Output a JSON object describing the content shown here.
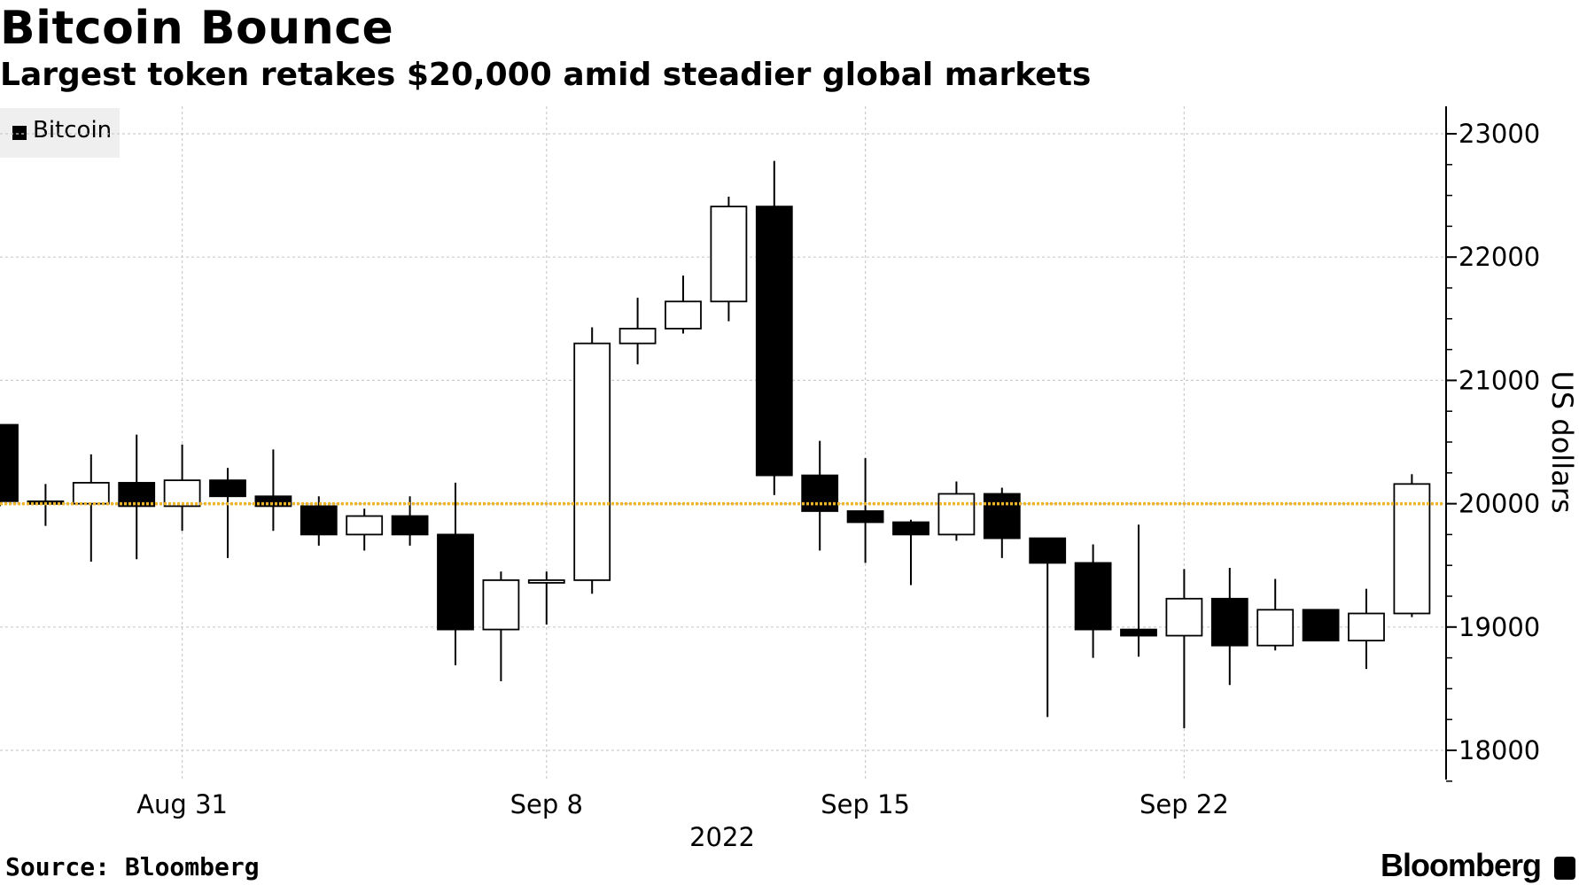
{
  "title": "Bitcoin Bounce",
  "subtitle": "Largest token retakes $20,000 amid steadier global markets",
  "legend": {
    "label": "Bitcoin"
  },
  "source": "Source: Bloomberg",
  "brand": "Bloomberg",
  "colors": {
    "up_fill": "#ffffff",
    "down_fill": "#000000",
    "reference_line": "#f0b429",
    "grid": "#cccccc"
  },
  "chart_data": {
    "type": "candlestick",
    "title": "Bitcoin Bounce",
    "subtitle": "Largest token retakes $20,000 amid steadier global markets",
    "series_name": "Bitcoin",
    "ylabel": "US dollars",
    "xlabel": "2022",
    "ylim": [
      17750,
      23100
    ],
    "yticks": [
      18000,
      19000,
      20000,
      21000,
      22000,
      23000
    ],
    "ytick_labels": [
      "18000",
      "19000",
      "20000",
      "21000",
      "22000",
      "23000"
    ],
    "xticks": [
      {
        "index": 4,
        "label": "Aug 31"
      },
      {
        "index": 12,
        "label": "Sep 8"
      },
      {
        "index": 19,
        "label": "Sep 15"
      },
      {
        "index": 26,
        "label": "Sep 22"
      }
    ],
    "reference_line": {
      "value": 20000
    },
    "grid": true,
    "legend_position": "top-left",
    "candles": [
      {
        "date": "Aug 27",
        "open": 20640,
        "close": 20020,
        "high": 20640,
        "low": 19980
      },
      {
        "date": "Aug 28",
        "open": 20020,
        "close": 20000,
        "high": 20160,
        "low": 19820
      },
      {
        "date": "Aug 29",
        "open": 20000,
        "close": 20170,
        "high": 20400,
        "low": 19530
      },
      {
        "date": "Aug 30",
        "open": 20170,
        "close": 19980,
        "high": 20560,
        "low": 19550
      },
      {
        "date": "Aug 31",
        "open": 19980,
        "close": 20190,
        "high": 20480,
        "low": 19780
      },
      {
        "date": "Sep 1",
        "open": 20190,
        "close": 20060,
        "high": 20290,
        "low": 19560
      },
      {
        "date": "Sep 2",
        "open": 20060,
        "close": 19980,
        "high": 20440,
        "low": 19780
      },
      {
        "date": "Sep 3",
        "open": 19980,
        "close": 19750,
        "high": 20060,
        "low": 19660
      },
      {
        "date": "Sep 4",
        "open": 19750,
        "close": 19900,
        "high": 19960,
        "low": 19620
      },
      {
        "date": "Sep 5",
        "open": 19900,
        "close": 19750,
        "high": 20060,
        "low": 19660
      },
      {
        "date": "Sep 6",
        "open": 19750,
        "close": 18980,
        "high": 20170,
        "low": 18690
      },
      {
        "date": "Sep 7",
        "open": 18980,
        "close": 19380,
        "high": 19450,
        "low": 18560
      },
      {
        "date": "Sep 8",
        "open": 19380,
        "close": 19380,
        "high": 19450,
        "low": 19020
      },
      {
        "date": "Sep 9",
        "open": 19380,
        "close": 21300,
        "high": 21430,
        "low": 19270
      },
      {
        "date": "Sep 10",
        "open": 21300,
        "close": 21420,
        "high": 21670,
        "low": 21130
      },
      {
        "date": "Sep 11",
        "open": 21420,
        "close": 21640,
        "high": 21850,
        "low": 21380
      },
      {
        "date": "Sep 12",
        "open": 21640,
        "close": 22410,
        "high": 22490,
        "low": 21480
      },
      {
        "date": "Sep 13",
        "open": 22410,
        "close": 20230,
        "high": 22780,
        "low": 20070
      },
      {
        "date": "Sep 14",
        "open": 20230,
        "close": 19940,
        "high": 20510,
        "low": 19620
      },
      {
        "date": "Sep 15",
        "open": 19940,
        "close": 19850,
        "high": 20370,
        "low": 19520
      },
      {
        "date": "Sep 16",
        "open": 19850,
        "close": 19750,
        "high": 19870,
        "low": 19340
      },
      {
        "date": "Sep 17",
        "open": 19750,
        "close": 20080,
        "high": 20180,
        "low": 19700
      },
      {
        "date": "Sep 18",
        "open": 20080,
        "close": 19720,
        "high": 20130,
        "low": 19560
      },
      {
        "date": "Sep 19",
        "open": 19720,
        "close": 19520,
        "high": 19720,
        "low": 18270
      },
      {
        "date": "Sep 20",
        "open": 19520,
        "close": 18980,
        "high": 19670,
        "low": 18750
      },
      {
        "date": "Sep 21",
        "open": 18980,
        "close": 18930,
        "high": 19830,
        "low": 18760
      },
      {
        "date": "Sep 22",
        "open": 18930,
        "close": 19230,
        "high": 19470,
        "low": 18180
      },
      {
        "date": "Sep 23",
        "open": 19230,
        "close": 18850,
        "high": 19480,
        "low": 18530
      },
      {
        "date": "Sep 24",
        "open": 18850,
        "close": 19140,
        "high": 19390,
        "low": 18810
      },
      {
        "date": "Sep 25",
        "open": 19140,
        "close": 18890,
        "high": 19140,
        "low": 18890
      },
      {
        "date": "Sep 26",
        "open": 18890,
        "close": 19110,
        "high": 19310,
        "low": 18660
      },
      {
        "date": "Sep 27",
        "open": 19110,
        "close": 20160,
        "high": 20240,
        "low": 19080
      }
    ]
  }
}
